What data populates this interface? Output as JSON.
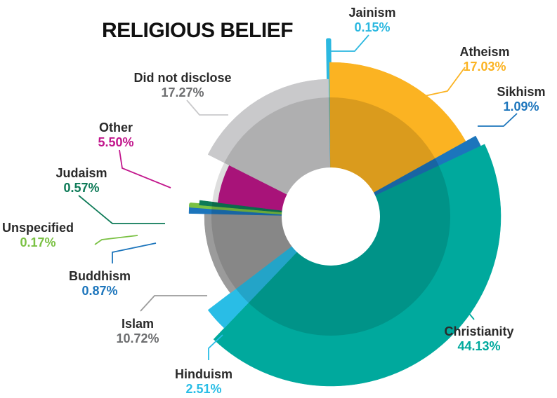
{
  "chart_data": {
    "type": "pie",
    "title": "RELIGIOUS BELIEF",
    "slices": [
      {
        "label": "Jainism",
        "value_label": "0.15%",
        "value": 0.15,
        "color": "#2BB8E0"
      },
      {
        "label": "Atheism",
        "value_label": "17.03%",
        "value": 17.03,
        "color": "#FBB322"
      },
      {
        "label": "Sikhism",
        "value_label": "1.09%",
        "value": 1.09,
        "color": "#1C75BC"
      },
      {
        "label": "Christianity",
        "value_label": "44.13%",
        "value": 44.13,
        "color": "#00A99D"
      },
      {
        "label": "Hinduism",
        "value_label": "2.51%",
        "value": 2.51,
        "color": "#29BDE6"
      },
      {
        "label": "Islam",
        "value_label": "10.72%",
        "value": 10.72,
        "color": "#9B9B9B"
      },
      {
        "label": "Buddhism",
        "value_label": "0.87%",
        "value": 0.87,
        "color": "#1C75BC"
      },
      {
        "label": "Unspecified",
        "value_label": "0.17%",
        "value": 0.17,
        "color": "#7AC143"
      },
      {
        "label": "Judaism",
        "value_label": "0.57%",
        "value": 0.57,
        "color": "#0D7A57"
      },
      {
        "label": "Other",
        "value_label": "5.50%",
        "value": 5.5,
        "color": "#C2168C"
      },
      {
        "label": "Did not disclose",
        "value_label": "17.27%",
        "value": 17.27,
        "color": "#C9C9CB"
      }
    ]
  }
}
